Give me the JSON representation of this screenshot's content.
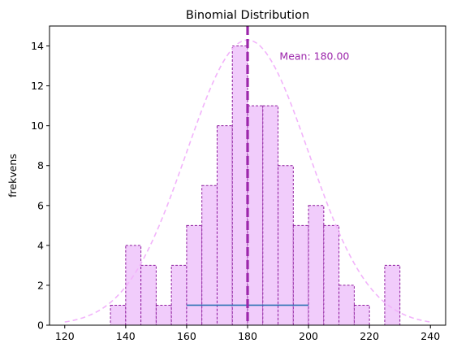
{
  "chart_data": {
    "type": "bar",
    "title": "Binomial Distribution",
    "xlabel": "",
    "ylabel": "frekvens",
    "xlim": [
      115,
      245
    ],
    "ylim": [
      0,
      15
    ],
    "xticks": [
      120,
      140,
      160,
      180,
      200,
      220,
      240
    ],
    "yticks": [
      0,
      2,
      4,
      6,
      8,
      10,
      12,
      14
    ],
    "grid": false,
    "histogram": {
      "bin_width": 5,
      "bins": [
        {
          "start": 135,
          "count": 1
        },
        {
          "start": 140,
          "count": 4
        },
        {
          "start": 145,
          "count": 3
        },
        {
          "start": 150,
          "count": 1
        },
        {
          "start": 155,
          "count": 3
        },
        {
          "start": 160,
          "count": 5
        },
        {
          "start": 165,
          "count": 7
        },
        {
          "start": 170,
          "count": 10
        },
        {
          "start": 175,
          "count": 14
        },
        {
          "start": 180,
          "count": 11
        },
        {
          "start": 185,
          "count": 11
        },
        {
          "start": 190,
          "count": 8
        },
        {
          "start": 195,
          "count": 5
        },
        {
          "start": 200,
          "count": 6
        },
        {
          "start": 205,
          "count": 5
        },
        {
          "start": 210,
          "count": 2
        },
        {
          "start": 215,
          "count": 1
        },
        {
          "start": 225,
          "count": 3
        }
      ]
    },
    "mean": 180,
    "mean_label": "Mean: 180.00",
    "normal_curve": {
      "mu": 180,
      "sigma": 20,
      "peak": 14.3,
      "x_range": [
        120,
        240
      ]
    },
    "range_line": {
      "x": [
        160,
        200
      ],
      "y": 1
    },
    "colors": {
      "bar_fill": "#f1ccfb",
      "bar_edge": "#8e1d9e",
      "mean_line": "#9c26ab",
      "mean_text": "#9c26ab",
      "curve": "#f2b3fb",
      "range_line": "#2f74b5"
    }
  }
}
